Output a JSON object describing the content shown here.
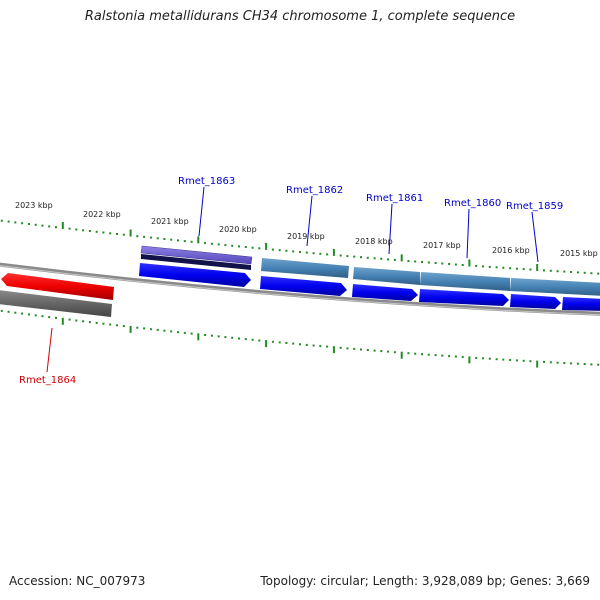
{
  "title": "Ralstonia metallidurans CH34 chromosome 1, complete sequence",
  "footer": {
    "accession": "Accession: NC_007973",
    "topology": "Topology: circular; Length: 3,928,089 bp; Genes: 3,669"
  },
  "scale_labels": [
    "2023 kbp",
    "2022 kbp",
    "2021 kbp",
    "2020 kbp",
    "2019 kbp",
    "2018 kbp",
    "2017 kbp",
    "2016 kbp",
    "2015 kbp"
  ],
  "genes": [
    {
      "name": "Rmet_1863",
      "strand": "forward",
      "color": "#0000cc"
    },
    {
      "name": "Rmet_1862",
      "strand": "forward",
      "color": "#0000cc"
    },
    {
      "name": "Rmet_1861",
      "strand": "forward",
      "color": "#0000cc"
    },
    {
      "name": "Rmet_1860",
      "strand": "forward",
      "color": "#0000cc"
    },
    {
      "name": "Rmet_1859",
      "strand": "forward",
      "color": "#0000cc"
    },
    {
      "name": "Rmet_1864",
      "strand": "reverse",
      "color": "#cc0000"
    }
  ],
  "colors": {
    "forward_gene": "#0000ee",
    "reverse_gene": "#ee0000",
    "feature_purple": "#6a5acd",
    "feature_steel": "#4682b4",
    "feature_gray": "#6e6e6e",
    "backbone": "#8a8a8a",
    "tick": "#228b22"
  }
}
